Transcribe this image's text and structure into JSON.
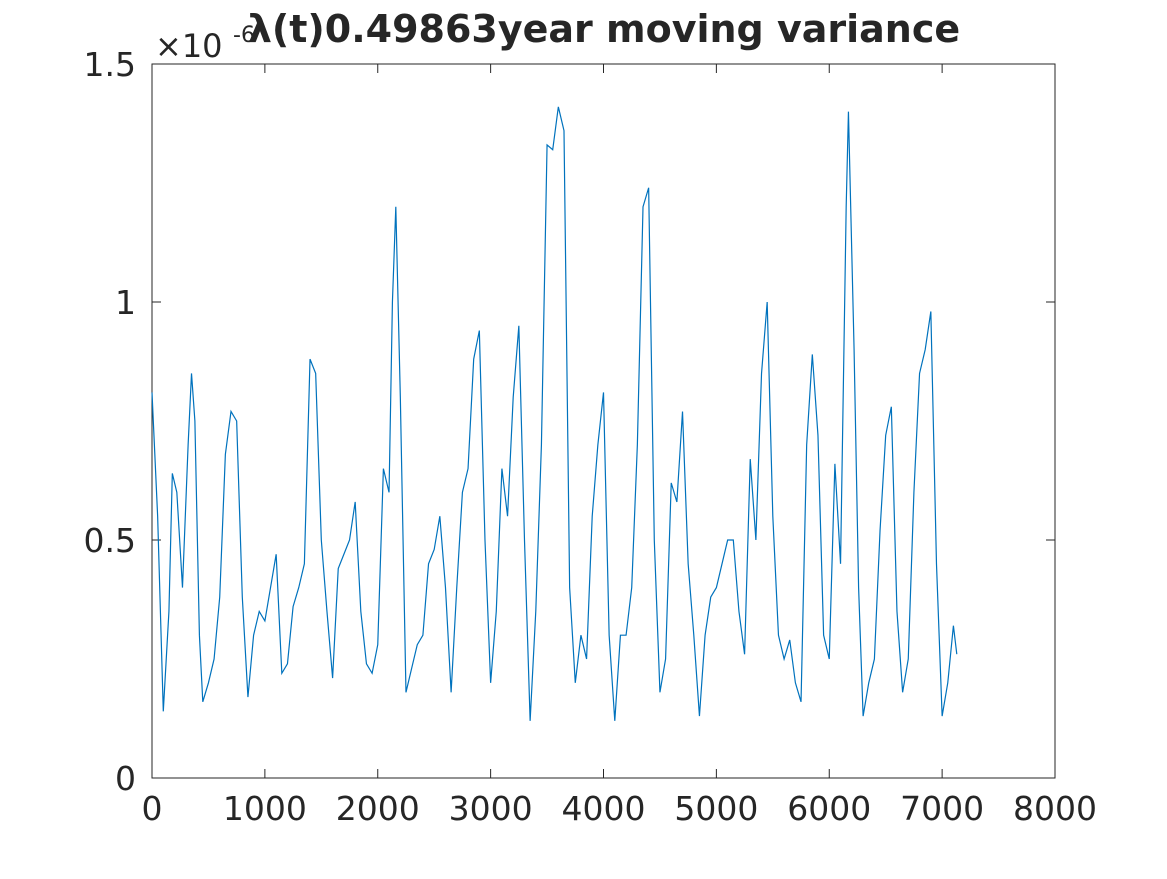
{
  "chart_data": {
    "type": "line",
    "title": "λ(t)0.49863year moving variance",
    "y_multiplier": "×10",
    "y_multiplier_exponent": "-6",
    "color": "#0072bd",
    "x": [
      0,
      50,
      100,
      150,
      180,
      220,
      270,
      320,
      350,
      380,
      420,
      450,
      500,
      550,
      600,
      650,
      700,
      750,
      800,
      850,
      900,
      950,
      1000,
      1050,
      1100,
      1150,
      1200,
      1250,
      1300,
      1350,
      1400,
      1450,
      1500,
      1550,
      1600,
      1650,
      1700,
      1750,
      1800,
      1850,
      1900,
      1950,
      2000,
      2050,
      2100,
      2130,
      2160,
      2200,
      2250,
      2300,
      2350,
      2400,
      2450,
      2500,
      2550,
      2600,
      2650,
      2700,
      2750,
      2800,
      2850,
      2900,
      2950,
      3000,
      3050,
      3100,
      3150,
      3200,
      3250,
      3300,
      3350,
      3400,
      3450,
      3500,
      3550,
      3600,
      3650,
      3700,
      3750,
      3800,
      3850,
      3900,
      3950,
      4000,
      4050,
      4100,
      4150,
      4200,
      4250,
      4300,
      4350,
      4400,
      4450,
      4500,
      4550,
      4600,
      4650,
      4700,
      4750,
      4800,
      4850,
      4900,
      4950,
      5000,
      5050,
      5100,
      5150,
      5200,
      5250,
      5300,
      5350,
      5400,
      5450,
      5500,
      5550,
      5600,
      5650,
      5700,
      5750,
      5800,
      5850,
      5900,
      5950,
      6000,
      6050,
      6100,
      6150,
      6170,
      6220,
      6260,
      6300,
      6350,
      6400,
      6450,
      6500,
      6550,
      6600,
      6650,
      6700,
      6750,
      6800,
      6850,
      6900,
      6950,
      7000,
      7050,
      7100,
      7130
    ],
    "values": [
      0.81,
      0.55,
      0.14,
      0.35,
      0.64,
      0.6,
      0.4,
      0.7,
      0.85,
      0.75,
      0.3,
      0.16,
      0.2,
      0.25,
      0.38,
      0.68,
      0.77,
      0.75,
      0.38,
      0.17,
      0.3,
      0.35,
      0.33,
      0.4,
      0.47,
      0.22,
      0.24,
      0.36,
      0.4,
      0.45,
      0.88,
      0.85,
      0.5,
      0.35,
      0.21,
      0.44,
      0.47,
      0.5,
      0.58,
      0.35,
      0.24,
      0.22,
      0.28,
      0.65,
      0.6,
      1.0,
      1.2,
      0.8,
      0.18,
      0.23,
      0.28,
      0.3,
      0.45,
      0.48,
      0.55,
      0.4,
      0.18,
      0.4,
      0.6,
      0.65,
      0.88,
      0.94,
      0.5,
      0.2,
      0.35,
      0.65,
      0.55,
      0.8,
      0.95,
      0.5,
      0.12,
      0.35,
      0.7,
      1.33,
      1.32,
      1.41,
      1.36,
      0.4,
      0.2,
      0.3,
      0.25,
      0.55,
      0.7,
      0.81,
      0.3,
      0.12,
      0.3,
      0.3,
      0.4,
      0.7,
      1.2,
      1.24,
      0.5,
      0.18,
      0.25,
      0.62,
      0.58,
      0.77,
      0.45,
      0.3,
      0.13,
      0.3,
      0.38,
      0.4,
      0.45,
      0.5,
      0.5,
      0.35,
      0.26,
      0.67,
      0.5,
      0.85,
      1.0,
      0.55,
      0.3,
      0.25,
      0.29,
      0.2,
      0.16,
      0.7,
      0.89,
      0.72,
      0.3,
      0.25,
      0.66,
      0.45,
      1.2,
      1.4,
      0.9,
      0.4,
      0.13,
      0.2,
      0.25,
      0.52,
      0.72,
      0.78,
      0.35,
      0.18,
      0.25,
      0.6,
      0.85,
      0.9,
      0.98,
      0.45,
      0.13,
      0.2,
      0.32,
      0.26
    ],
    "xlim": [
      0,
      8000
    ],
    "xticks": [
      0,
      1000,
      2000,
      3000,
      4000,
      5000,
      6000,
      7000,
      8000
    ],
    "ylim": [
      0,
      1.5
    ],
    "yticks": [
      0,
      0.5,
      1,
      1.5
    ],
    "box": true
  }
}
